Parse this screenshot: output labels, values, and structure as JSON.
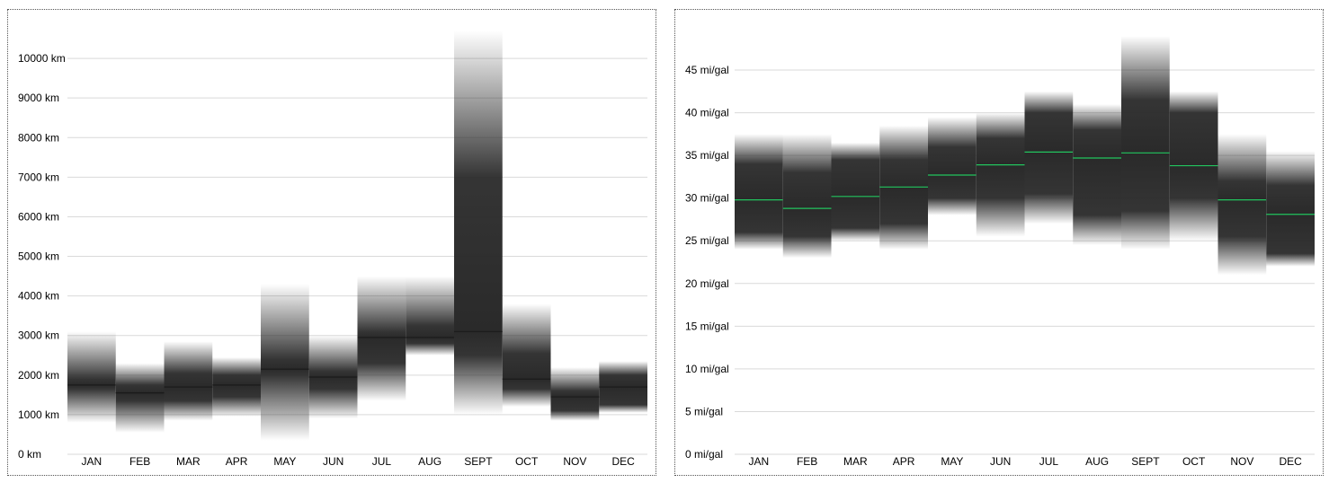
{
  "chart_data": [
    {
      "type": "box-gradient",
      "categories": [
        "JAN",
        "FEB",
        "MAR",
        "APR",
        "MAY",
        "JUN",
        "JUL",
        "AUG",
        "SEPT",
        "OCT",
        "NOV",
        "DEC"
      ],
      "y_ticks": [
        {
          "value": 0,
          "label": "0 km"
        },
        {
          "value": 1000,
          "label": "1000 km"
        },
        {
          "value": 2000,
          "label": "2000 km"
        },
        {
          "value": 3000,
          "label": "3000 km"
        },
        {
          "value": 4000,
          "label": "4000 km"
        },
        {
          "value": 5000,
          "label": "5000 km"
        },
        {
          "value": 6000,
          "label": "6000 km"
        },
        {
          "value": 7000,
          "label": "7000 km"
        },
        {
          "value": 8000,
          "label": "8000 km"
        },
        {
          "value": 9000,
          "label": "9000 km"
        },
        {
          "value": 10000,
          "label": "10000 km"
        }
      ],
      "ylim": [
        0,
        11000
      ],
      "grid": true,
      "distributions": [
        {
          "min": 800,
          "q1": 1650,
          "median": 1750,
          "q3": 1900,
          "max": 3100
        },
        {
          "min": 550,
          "q1": 1350,
          "median": 1550,
          "q3": 1750,
          "max": 2300
        },
        {
          "min": 850,
          "q1": 1350,
          "median": 1700,
          "q3": 2050,
          "max": 2850
        },
        {
          "min": 950,
          "q1": 1450,
          "median": 1750,
          "q3": 2000,
          "max": 2450
        },
        {
          "min": 350,
          "q1": 2000,
          "median": 2150,
          "q3": 2400,
          "max": 4300
        },
        {
          "min": 900,
          "q1": 1650,
          "median": 1950,
          "q3": 2100,
          "max": 3000
        },
        {
          "min": 1350,
          "q1": 2300,
          "median": 2950,
          "q3": 3100,
          "max": 4500
        },
        {
          "min": 2500,
          "q1": 2800,
          "median": 2950,
          "q3": 3250,
          "max": 4500
        },
        {
          "min": 1000,
          "q1": 2500,
          "median": 3100,
          "q3": 7000,
          "max": 10700
        },
        {
          "min": 1200,
          "q1": 1650,
          "median": 1900,
          "q3": 2550,
          "max": 3800
        },
        {
          "min": 850,
          "q1": 1100,
          "median": 1450,
          "q3": 1600,
          "max": 2200
        },
        {
          "min": 1050,
          "q1": 1250,
          "median": 1700,
          "q3": 2000,
          "max": 2350
        }
      ],
      "colors": {
        "fill": "#2a2a2a",
        "median": "#1a1a1a",
        "grid": "#d9d9d9"
      }
    },
    {
      "type": "box-gradient",
      "categories": [
        "JAN",
        "FEB",
        "MAR",
        "APR",
        "MAY",
        "JUN",
        "JUL",
        "AUG",
        "SEPT",
        "OCT",
        "NOV",
        "DEC"
      ],
      "y_ticks": [
        {
          "value": 0,
          "label": "0 mi/gal"
        },
        {
          "value": 5,
          "label": "5 mi/gal"
        },
        {
          "value": 10,
          "label": "10 mi/gal"
        },
        {
          "value": 15,
          "label": "15 mi/gal"
        },
        {
          "value": 20,
          "label": "20 mi/gal"
        },
        {
          "value": 25,
          "label": "25 mi/gal"
        },
        {
          "value": 30,
          "label": "30 mi/gal"
        },
        {
          "value": 35,
          "label": "35 mi/gal"
        },
        {
          "value": 40,
          "label": "40 mi/gal"
        },
        {
          "value": 45,
          "label": "45 mi/gal"
        }
      ],
      "ylim": [
        0,
        49
      ],
      "grid": true,
      "distributions": [
        {
          "min": 24.0,
          "q1": 26.0,
          "median": 29.8,
          "q3": 34.0,
          "max": 37.5
        },
        {
          "min": 23.0,
          "q1": 25.5,
          "median": 28.8,
          "q3": 33.0,
          "max": 37.5
        },
        {
          "min": 25.0,
          "q1": 26.5,
          "median": 30.2,
          "q3": 34.5,
          "max": 36.5
        },
        {
          "min": 24.0,
          "q1": 27.0,
          "median": 31.3,
          "q3": 34.5,
          "max": 38.5
        },
        {
          "min": 28.0,
          "q1": 30.0,
          "median": 32.7,
          "q3": 36.0,
          "max": 39.5
        },
        {
          "min": 25.5,
          "q1": 30.0,
          "median": 33.9,
          "q3": 37.0,
          "max": 40.0
        },
        {
          "min": 27.0,
          "q1": 30.5,
          "median": 35.4,
          "q3": 40.0,
          "max": 42.5
        },
        {
          "min": 24.5,
          "q1": 28.0,
          "median": 34.7,
          "q3": 38.0,
          "max": 41.0
        },
        {
          "min": 24.0,
          "q1": 28.5,
          "median": 35.3,
          "q3": 41.5,
          "max": 49.0
        },
        {
          "min": 25.0,
          "q1": 30.0,
          "median": 33.8,
          "q3": 40.0,
          "max": 42.5
        },
        {
          "min": 21.0,
          "q1": 25.5,
          "median": 29.8,
          "q3": 32.0,
          "max": 37.5
        },
        {
          "min": 22.0,
          "q1": 23.5,
          "median": 28.1,
          "q3": 31.5,
          "max": 35.5
        }
      ],
      "colors": {
        "fill": "#2a2a2a",
        "median": "#22c55e",
        "grid": "#d9d9d9"
      }
    }
  ]
}
